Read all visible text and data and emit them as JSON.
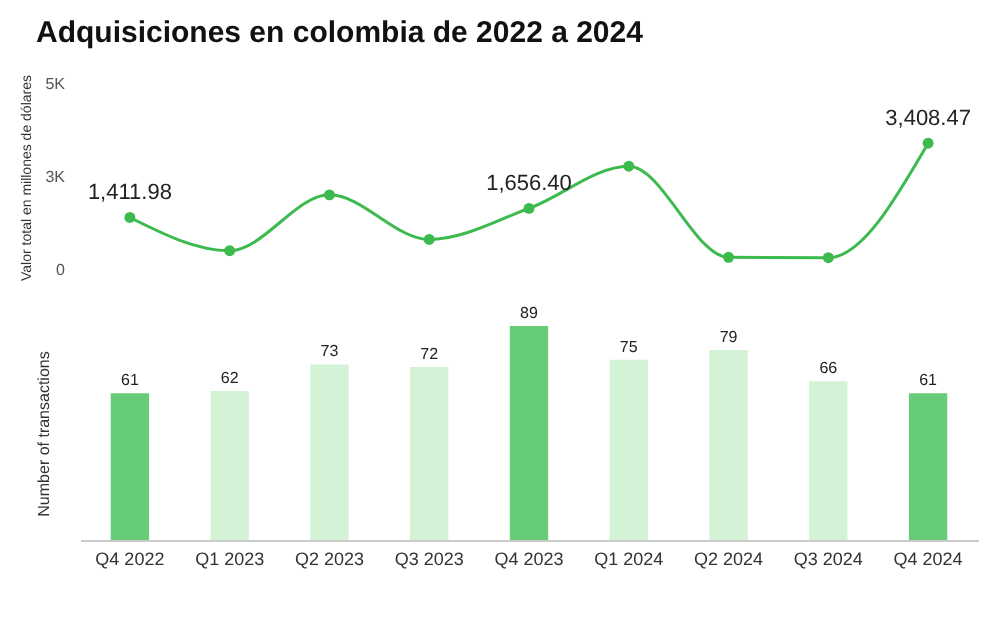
{
  "chart_data": [
    {
      "type": "line",
      "title": "Adquisiciones en colombia de 2022 a 2024",
      "ylabel": "Valor total en millones de dólares",
      "categories": [
        null,
        null,
        null,
        null,
        null,
        null,
        null,
        null,
        null
      ],
      "series": [
        {
          "color": "#3dba4e",
          "values": [
            1411.98,
            520,
            2020,
            820,
            1656.4,
            2790,
            340,
            330,
            3408.47
          ],
          "value_labels": [
            "1,411.98",
            null,
            null,
            null,
            "1,656.40",
            null,
            null,
            null,
            "3,408.47"
          ]
        }
      ],
      "ylim": [
        0,
        5000
      ],
      "yticks": [
        0,
        {
          "value": 2500,
          "label": "3K"
        },
        {
          "value": 5000,
          "label": "5K"
        }
      ],
      "marker": "circle",
      "tick_labels": "y"
    },
    {
      "type": "bar",
      "ylabel": "Number of transactions",
      "categories": [
        "Q4 2022",
        "Q1 2023",
        "Q2 2023",
        "Q3 2023",
        "Q4 2023",
        "Q1 2024",
        "Q2 2024",
        "Q3 2024",
        "Q4 2024"
      ],
      "values": [
        61,
        62,
        73,
        72,
        89,
        75,
        79,
        66,
        61
      ],
      "colors": [
        "#66cc77",
        "#d4f2d6",
        "#d4f2d6",
        "#d4f2d6",
        "#66cc77",
        "#d4f2d6",
        "#d4f2d6",
        "#d4f2d6",
        "#66cc77"
      ],
      "data_labels": true,
      "tick_labels": "x"
    }
  ]
}
